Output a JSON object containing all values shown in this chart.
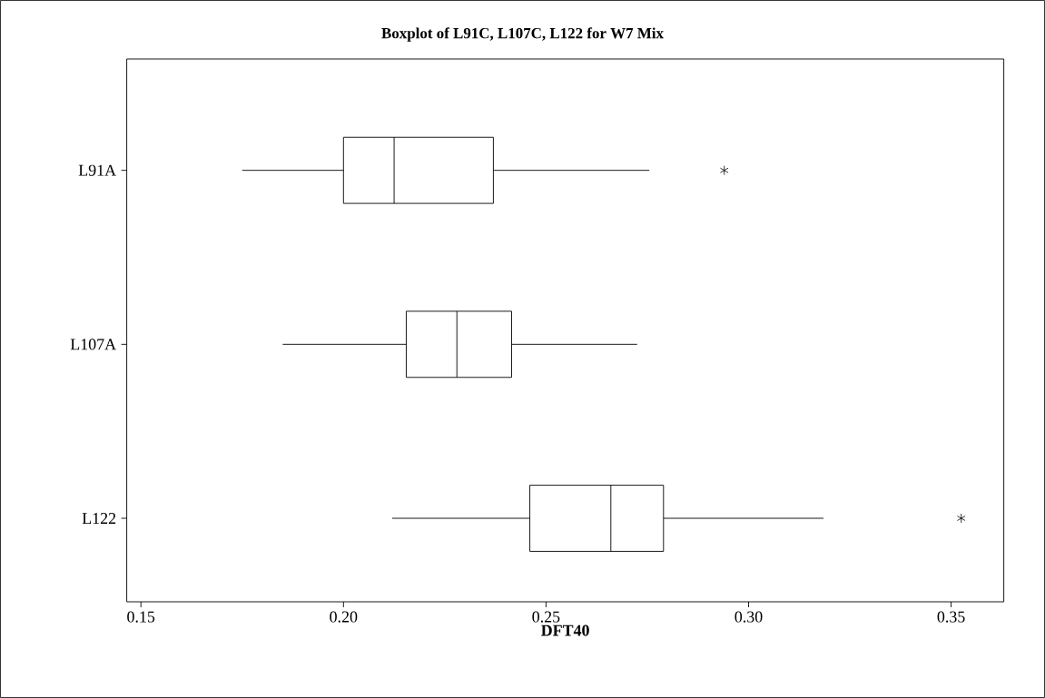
{
  "chart_data": {
    "type": "box",
    "title": "Boxplot of L91C, L107C, L122 for W7 Mix",
    "xlabel": "DFT40",
    "orientation": "horizontal",
    "categories": [
      "L91A",
      "L107A",
      "L122"
    ],
    "boxes": [
      {
        "low": 0.175,
        "q1": 0.2,
        "median": 0.2125,
        "q3": 0.237,
        "high": 0.2755,
        "outliers": [
          0.294
        ]
      },
      {
        "low": 0.185,
        "q1": 0.2155,
        "median": 0.228,
        "q3": 0.2415,
        "high": 0.2725
      },
      {
        "low": 0.212,
        "q1": 0.246,
        "median": 0.266,
        "q3": 0.279,
        "high": 0.3185,
        "outliers": [
          0.3525
        ]
      }
    ],
    "xlim": [
      0.1465,
      0.363
    ],
    "xticks": [
      0.15,
      {
        "value": 0.2,
        "label": "0.20"
      },
      0.25,
      {
        "value": 0.3,
        "label": "0.30"
      },
      0.35
    ]
  }
}
